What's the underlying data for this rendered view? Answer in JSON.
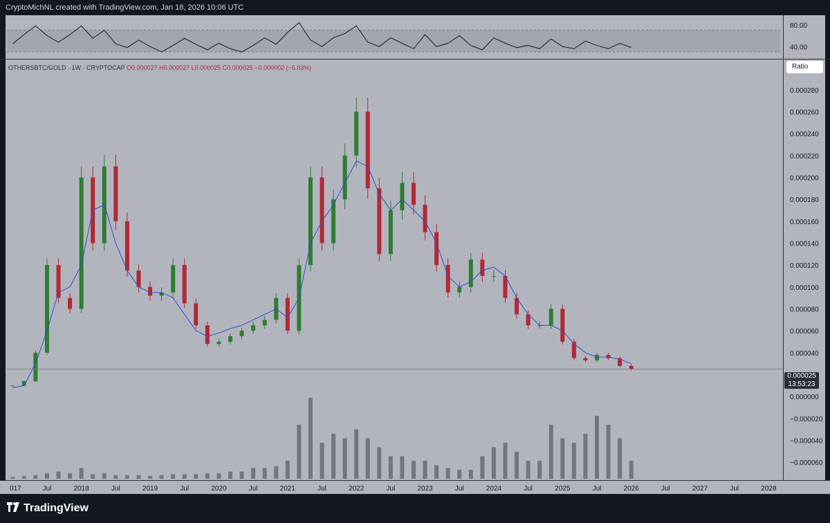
{
  "header": {
    "attribution": "CryptoMichNL created with TradingView.com, Jan 18, 2026 10:06 UTC"
  },
  "legend": {
    "symbol": "OTHERSBTC/GOLD · 1W · CRYPTOCAP",
    "ohlc": "O0.000027  H0.000027  L0.000025  C0.000025  −0.000002 (−6.03%)"
  },
  "ratio_button": "Ratio",
  "last_price": {
    "value": "0.000025",
    "countdown": "13:53:23"
  },
  "footer": {
    "brand": "TradingView"
  },
  "colors": {
    "pane_background": "#b2b5be",
    "chrome_background": "#131722",
    "up_candle": "#2e7d32",
    "down_candle": "#b22833",
    "moving_average": "#2f4cc9",
    "volume": "#5d606b"
  },
  "chart_data": [
    {
      "type": "line",
      "name": "RSI",
      "ylim": [
        20,
        95
      ],
      "y_ticks": [
        "80.00",
        "40.00"
      ],
      "band": [
        30,
        70
      ],
      "x": [
        "2017-01",
        "2017-03",
        "2017-05",
        "2017-07",
        "2017-09",
        "2017-11",
        "2018-01",
        "2018-03",
        "2018-05",
        "2018-07",
        "2018-09",
        "2018-11",
        "2019-01",
        "2019-03",
        "2019-05",
        "2019-07",
        "2019-09",
        "2019-11",
        "2020-01",
        "2020-03",
        "2020-05",
        "2020-07",
        "2020-09",
        "2020-11",
        "2021-01",
        "2021-03",
        "2021-05",
        "2021-07",
        "2021-09",
        "2021-11",
        "2022-01",
        "2022-03",
        "2022-05",
        "2022-07",
        "2022-09",
        "2022-11",
        "2023-01",
        "2023-03",
        "2023-05",
        "2023-07",
        "2023-09",
        "2023-11",
        "2024-01",
        "2024-03",
        "2024-05",
        "2024-07",
        "2024-09",
        "2024-11",
        "2025-01",
        "2025-03",
        "2025-05",
        "2025-07",
        "2025-09",
        "2025-11",
        "2026-01"
      ],
      "values": [
        45,
        62,
        78,
        60,
        48,
        62,
        78,
        55,
        70,
        45,
        38,
        52,
        40,
        30,
        42,
        55,
        44,
        34,
        46,
        36,
        30,
        42,
        56,
        44,
        66,
        84,
        52,
        40,
        56,
        64,
        78,
        48,
        40,
        56,
        46,
        36,
        62,
        40,
        46,
        60,
        42,
        34,
        56,
        46,
        38,
        42,
        36,
        54,
        40,
        36,
        50,
        42,
        36,
        46,
        38
      ]
    },
    {
      "type": "candlestick",
      "name": "OTHERSBTC/GOLD",
      "ylim": [
        -7e-05,
        0.000295
      ],
      "y_ticks": [
        "0.000280",
        "0.000260",
        "0.000240",
        "0.000220",
        "0.000200",
        "0.000180",
        "0.000160",
        "0.000140",
        "0.000120",
        "0.000100",
        "0.000080",
        "0.000060",
        "0.000040",
        "0.000000",
        "−0.000020",
        "−0.000040",
        "−0.000060"
      ],
      "x_ticks": [
        "017",
        "Jul",
        "2018",
        "Jul",
        "2019",
        "Jul",
        "2020",
        "Jul",
        "2021",
        "Jul",
        "2022",
        "Jul",
        "2023",
        "Jul",
        "2024",
        "Jul",
        "2025",
        "Jul",
        "2026",
        "Jul",
        "2027",
        "Jul",
        "2028"
      ],
      "x": [
        "2017-01",
        "2017-03",
        "2017-05",
        "2017-07",
        "2017-09",
        "2017-11",
        "2018-01",
        "2018-03",
        "2018-05",
        "2018-07",
        "2018-09",
        "2018-11",
        "2019-01",
        "2019-03",
        "2019-05",
        "2019-07",
        "2019-09",
        "2019-11",
        "2020-01",
        "2020-03",
        "2020-05",
        "2020-07",
        "2020-09",
        "2020-11",
        "2021-01",
        "2021-03",
        "2021-05",
        "2021-07",
        "2021-09",
        "2021-11",
        "2022-01",
        "2022-03",
        "2022-05",
        "2022-07",
        "2022-09",
        "2022-11",
        "2023-01",
        "2023-03",
        "2023-05",
        "2023-07",
        "2023-09",
        "2023-11",
        "2024-01",
        "2024-03",
        "2024-05",
        "2024-07",
        "2024-09",
        "2024-11",
        "2025-01",
        "2025-03",
        "2025-05",
        "2025-07",
        "2025-09",
        "2025-11",
        "2026-01"
      ],
      "close": [
        1e-05,
        1.4e-05,
        4e-05,
        0.00012,
        9e-05,
        8e-05,
        0.0002,
        0.00014,
        0.00021,
        0.00016,
        0.000115,
        0.0001,
        9.2e-05,
        9.5e-05,
        0.00012,
        8.5e-05,
        6.5e-05,
        4.8e-05,
        5e-05,
        5.5e-05,
        6e-05,
        6.5e-05,
        7e-05,
        9e-05,
        6e-05,
        0.00012,
        0.0002,
        0.00014,
        0.00018,
        0.00022,
        0.00026,
        0.00019,
        0.00013,
        0.00017,
        0.000195,
        0.000175,
        0.00015,
        0.00012,
        9.5e-05,
        0.0001,
        0.000125,
        0.00011,
        0.00011,
        9e-05,
        7.5e-05,
        6.5e-05,
        6.5e-05,
        8e-05,
        5e-05,
        3.5e-05,
        3.3e-05,
        3.8e-05,
        3.5e-05,
        2.8e-05,
        2.5e-05
      ],
      "ma": [
        8e-06,
        1e-05,
        3e-05,
        6e-05,
        9.5e-05,
        0.0001,
        0.00012,
        0.00017,
        0.000175,
        0.00014,
        0.000115,
        0.0001,
        9.5e-05,
        9.5e-05,
        9e-05,
        7.5e-05,
        6e-05,
        5.5e-05,
        5.8e-05,
        6.2e-05,
        6.5e-05,
        7e-05,
        7.5e-05,
        8e-05,
        7.2e-05,
        9e-05,
        0.00014,
        0.00016,
        0.000175,
        0.000195,
        0.000215,
        0.00021,
        0.000185,
        0.00017,
        0.00018,
        0.00017,
        0.00016,
        0.00014,
        0.00011,
        0.0001,
        0.000105,
        0.000115,
        0.000118,
        0.00011,
        9e-05,
        7.5e-05,
        6.5e-05,
        6.5e-05,
        6e-05,
        4.8e-05,
        4e-05,
        3.6e-05,
        3.6e-05,
        3.4e-05,
        3e-05
      ],
      "volume_ylim": [
        0,
        1
      ],
      "volume": [
        0.02,
        0.03,
        0.04,
        0.06,
        0.08,
        0.06,
        0.12,
        0.05,
        0.06,
        0.04,
        0.04,
        0.04,
        0.03,
        0.04,
        0.05,
        0.05,
        0.05,
        0.06,
        0.06,
        0.08,
        0.08,
        0.12,
        0.12,
        0.14,
        0.2,
        0.6,
        0.9,
        0.4,
        0.5,
        0.45,
        0.55,
        0.45,
        0.35,
        0.25,
        0.25,
        0.2,
        0.2,
        0.15,
        0.12,
        0.1,
        0.1,
        0.25,
        0.35,
        0.4,
        0.3,
        0.2,
        0.2,
        0.6,
        0.45,
        0.4,
        0.5,
        0.7,
        0.6,
        0.45,
        0.2
      ]
    }
  ]
}
